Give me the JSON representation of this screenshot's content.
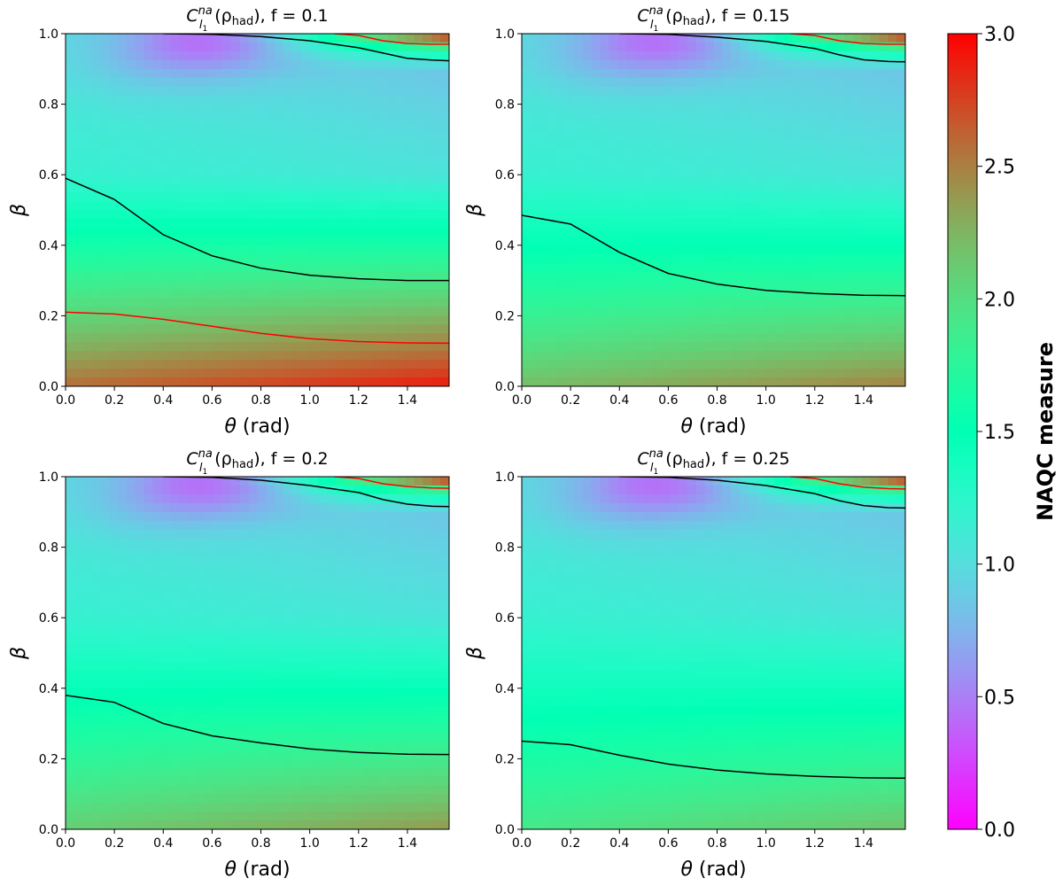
{
  "chart_data": {
    "type": "heatmap",
    "panels": [
      {
        "title_prefix": "C",
        "title_sup": "na",
        "title_sub": "l",
        "title_subsub": "1",
        "title_mid": "(ρ",
        "title_rho_sub": "had",
        "title_rest": "),  f = 0.1",
        "f": 0.1,
        "xlabel_sym": "θ",
        "xlabel_unit": " (rad)",
        "ylabel": "β",
        "xlim": [
          0,
          1.5708
        ],
        "ylim": [
          0,
          1
        ],
        "xticks": [
          "0.0",
          "0.2",
          "0.4",
          "0.6",
          "0.8",
          "1.0",
          "1.2",
          "1.4"
        ],
        "yticks": [
          "0.0",
          "0.2",
          "0.4",
          "0.6",
          "0.8",
          "1.0"
        ],
        "bottom_value": 2.75,
        "top_left_min": 0.3,
        "contours": [
          {
            "level": 2.0,
            "color": "#000000",
            "theta": [
              0,
              0.2,
              0.4,
              0.6,
              0.8,
              1.0,
              1.2,
              1.4,
              1.5708
            ],
            "beta": [
              0.59,
              0.53,
              0.43,
              0.37,
              0.335,
              0.315,
              0.305,
              0.3,
              0.3
            ]
          },
          {
            "level": 2.5,
            "color": "#ff0000",
            "theta": [
              0,
              0.2,
              0.4,
              0.6,
              0.8,
              1.0,
              1.2,
              1.4,
              1.5708
            ],
            "beta": [
              0.21,
              0.205,
              0.19,
              0.17,
              0.15,
              0.135,
              0.127,
              0.123,
              0.122
            ]
          },
          {
            "level": 2.0,
            "color": "#000000",
            "theta": [
              0.4,
              0.6,
              0.8,
              1.0,
              1.2,
              1.3,
              1.4,
              1.5,
              1.5708
            ],
            "beta": [
              1.0,
              0.998,
              0.992,
              0.98,
              0.96,
              0.945,
              0.93,
              0.925,
              0.923
            ]
          },
          {
            "level": 2.5,
            "color": "#ff0000",
            "theta": [
              1.1,
              1.2,
              1.3,
              1.4,
              1.5,
              1.5708
            ],
            "beta": [
              1.0,
              0.995,
              0.98,
              0.972,
              0.97,
              0.97
            ]
          }
        ]
      },
      {
        "title_prefix": "C",
        "title_sup": "na",
        "title_sub": "l",
        "title_subsub": "1",
        "title_mid": "(ρ",
        "title_rho_sub": "had",
        "title_rest": "),  f = 0.15",
        "f": 0.15,
        "xlabel_sym": "θ",
        "xlabel_unit": " (rad)",
        "ylabel": "β",
        "xlim": [
          0,
          1.5708
        ],
        "ylim": [
          0,
          1
        ],
        "xticks": [
          "0.0",
          "0.2",
          "0.4",
          "0.6",
          "0.8",
          "1.0",
          "1.2",
          "1.4"
        ],
        "yticks": [
          "0.0",
          "0.2",
          "0.4",
          "0.6",
          "0.8",
          "1.0"
        ],
        "bottom_value": 2.35,
        "top_left_min": 0.3,
        "contours": [
          {
            "level": 2.0,
            "color": "#000000",
            "theta": [
              0,
              0.2,
              0.4,
              0.6,
              0.8,
              1.0,
              1.2,
              1.4,
              1.5708
            ],
            "beta": [
              0.485,
              0.46,
              0.38,
              0.32,
              0.29,
              0.272,
              0.263,
              0.258,
              0.257
            ]
          },
          {
            "level": 2.0,
            "color": "#000000",
            "theta": [
              0.4,
              0.6,
              0.8,
              1.0,
              1.2,
              1.3,
              1.4,
              1.5,
              1.5708
            ],
            "beta": [
              1.0,
              0.998,
              0.99,
              0.978,
              0.958,
              0.94,
              0.926,
              0.921,
              0.92
            ]
          },
          {
            "level": 2.5,
            "color": "#ff0000",
            "theta": [
              1.1,
              1.2,
              1.3,
              1.4,
              1.5,
              1.5708
            ],
            "beta": [
              1.0,
              0.995,
              0.98,
              0.972,
              0.97,
              0.97
            ]
          }
        ]
      },
      {
        "title_prefix": "C",
        "title_sup": "na",
        "title_sub": "l",
        "title_subsub": "1",
        "title_mid": "(ρ",
        "title_rho_sub": "had",
        "title_rest": "),  f = 0.2",
        "f": 0.2,
        "xlabel_sym": "θ",
        "xlabel_unit": " (rad)",
        "ylabel": "β",
        "xlim": [
          0,
          1.5708
        ],
        "ylim": [
          0,
          1
        ],
        "xticks": [
          "0.0",
          "0.2",
          "0.4",
          "0.6",
          "0.8",
          "1.0",
          "1.2",
          "1.4"
        ],
        "yticks": [
          "0.0",
          "0.2",
          "0.4",
          "0.6",
          "0.8",
          "1.0"
        ],
        "bottom_value": 2.25,
        "top_left_min": 0.3,
        "contours": [
          {
            "level": 2.0,
            "color": "#000000",
            "theta": [
              0,
              0.2,
              0.4,
              0.6,
              0.8,
              1.0,
              1.2,
              1.4,
              1.5708
            ],
            "beta": [
              0.38,
              0.36,
              0.3,
              0.265,
              0.245,
              0.228,
              0.218,
              0.213,
              0.212
            ]
          },
          {
            "level": 2.0,
            "color": "#000000",
            "theta": [
              0.4,
              0.6,
              0.8,
              1.0,
              1.2,
              1.3,
              1.4,
              1.5,
              1.5708
            ],
            "beta": [
              1.0,
              0.998,
              0.99,
              0.975,
              0.955,
              0.935,
              0.922,
              0.916,
              0.915
            ]
          },
          {
            "level": 2.5,
            "color": "#ff0000",
            "theta": [
              1.1,
              1.2,
              1.3,
              1.4,
              1.5,
              1.5708
            ],
            "beta": [
              1.0,
              0.995,
              0.98,
              0.972,
              0.968,
              0.967
            ]
          }
        ]
      },
      {
        "title_prefix": "C",
        "title_sup": "na",
        "title_sub": "l",
        "title_subsub": "1",
        "title_mid": "(ρ",
        "title_rho_sub": "had",
        "title_rest": "),  f = 0.25",
        "f": 0.25,
        "xlabel_sym": "θ",
        "xlabel_unit": " (rad)",
        "ylabel": "β",
        "xlim": [
          0,
          1.5708
        ],
        "ylim": [
          0,
          1
        ],
        "xticks": [
          "0.0",
          "0.2",
          "0.4",
          "0.6",
          "0.8",
          "1.0",
          "1.2",
          "1.4"
        ],
        "yticks": [
          "0.0",
          "0.2",
          "0.4",
          "0.6",
          "0.8",
          "1.0"
        ],
        "bottom_value": 2.05,
        "top_left_min": 0.3,
        "contours": [
          {
            "level": 2.0,
            "color": "#000000",
            "theta": [
              0,
              0.2,
              0.4,
              0.6,
              0.8,
              1.0,
              1.2,
              1.4,
              1.5708
            ],
            "beta": [
              0.25,
              0.24,
              0.21,
              0.185,
              0.168,
              0.157,
              0.15,
              0.146,
              0.145
            ]
          },
          {
            "level": 2.0,
            "color": "#000000",
            "theta": [
              0.4,
              0.6,
              0.8,
              1.0,
              1.2,
              1.3,
              1.4,
              1.5,
              1.5708
            ],
            "beta": [
              1.0,
              0.998,
              0.99,
              0.975,
              0.952,
              0.932,
              0.918,
              0.912,
              0.911
            ]
          },
          {
            "level": 2.5,
            "color": "#ff0000",
            "theta": [
              1.1,
              1.2,
              1.3,
              1.4,
              1.5,
              1.5708
            ],
            "beta": [
              1.0,
              0.995,
              0.98,
              0.97,
              0.966,
              0.965
            ]
          }
        ]
      }
    ],
    "colorbar": {
      "label": "NAQC measure",
      "colormap": "rainbow",
      "range": [
        0,
        3
      ],
      "ticks": [
        "0.0",
        "0.5",
        "1.0",
        "1.5",
        "2.0",
        "2.5",
        "3.0"
      ]
    }
  }
}
